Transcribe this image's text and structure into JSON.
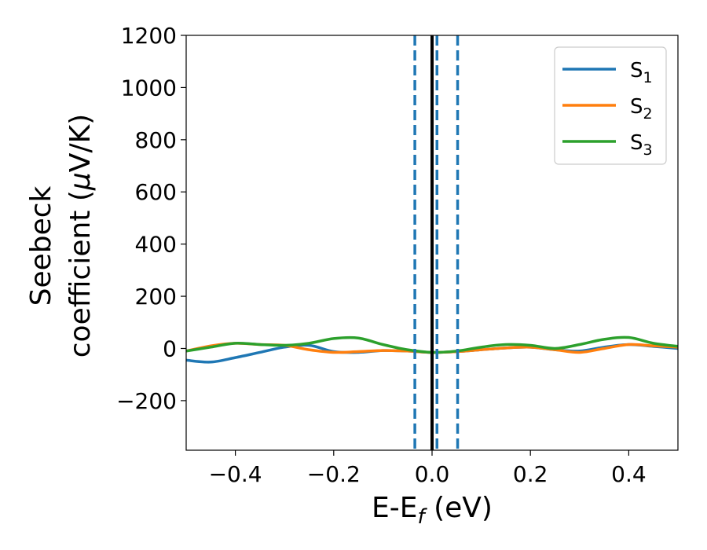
{
  "chart_data": {
    "type": "line",
    "xlabel": {
      "main": "E-E",
      "sub": "f",
      "unit": " (eV)"
    },
    "ylabel": {
      "line1": "Seebeck",
      "line2_pre": "coefficient  (",
      "mu": "μ",
      "line2_post": "V/K)"
    },
    "xlim": [
      -0.5,
      0.5
    ],
    "ylim": [
      -390,
      1200
    ],
    "xticks": [
      -0.4,
      -0.2,
      0.0,
      0.2,
      0.4
    ],
    "xtick_labels": [
      "−0.4",
      "−0.2",
      "0.0",
      "0.2",
      "0.4"
    ],
    "yticks": [
      -200,
      0,
      200,
      400,
      600,
      800,
      1000,
      1200
    ],
    "ytick_labels": [
      "−200",
      "0",
      "200",
      "400",
      "600",
      "800",
      "1000",
      "1200"
    ],
    "grid": false,
    "legend_position": "top-right",
    "vertical_lines": [
      {
        "x": 0.0,
        "style": "solid",
        "color": "#000000"
      },
      {
        "x": -0.035,
        "style": "dashed",
        "color": "#1f77b4"
      },
      {
        "x": 0.01,
        "style": "dashed",
        "color": "#1f77b4"
      },
      {
        "x": 0.052,
        "style": "dashed",
        "color": "#1f77b4"
      }
    ],
    "x": [
      -0.5,
      -0.45,
      -0.4,
      -0.35,
      -0.3,
      -0.25,
      -0.2,
      -0.15,
      -0.1,
      -0.05,
      0.0,
      0.05,
      0.1,
      0.15,
      0.2,
      0.25,
      0.3,
      0.35,
      0.4,
      0.45,
      0.5
    ],
    "series": [
      {
        "name": "S",
        "sub": "1",
        "color": "#1f77b4",
        "values": [
          -45,
          -52,
          -35,
          -15,
          5,
          12,
          -12,
          -15,
          -8,
          -10,
          -15,
          -12,
          -5,
          2,
          5,
          -5,
          -10,
          5,
          15,
          8,
          0
        ]
      },
      {
        "name": "S",
        "sub": "2",
        "color": "#ff7f0e",
        "values": [
          -10,
          10,
          20,
          15,
          12,
          -5,
          -15,
          -12,
          -8,
          -10,
          -15,
          -12,
          -5,
          2,
          5,
          -5,
          -15,
          0,
          15,
          10,
          5
        ]
      },
      {
        "name": "S",
        "sub": "3",
        "color": "#2ca02c",
        "values": [
          -10,
          5,
          20,
          15,
          12,
          20,
          38,
          40,
          15,
          -5,
          -15,
          -10,
          5,
          15,
          12,
          0,
          15,
          35,
          42,
          20,
          8
        ]
      }
    ]
  }
}
